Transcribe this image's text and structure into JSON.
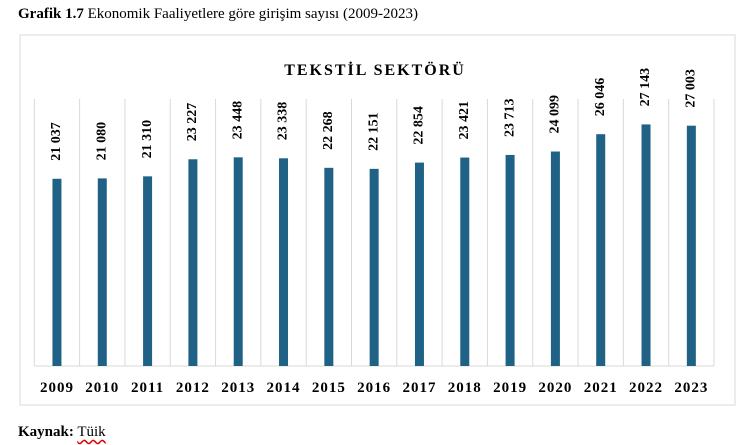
{
  "caption": {
    "label": "Grafik 1.7",
    "text": "Ekonomik Faaliyetlere göre girişim sayısı (2009-2023)"
  },
  "chart_data": {
    "type": "bar",
    "title": "TEKSTİL SEKTÖRÜ",
    "categories": [
      "2009",
      "2010",
      "2011",
      "2012",
      "2013",
      "2014",
      "2015",
      "2016",
      "2017",
      "2018",
      "2019",
      "2020",
      "2021",
      "2022",
      "2023"
    ],
    "values": [
      21037,
      21080,
      21310,
      23227,
      23448,
      23338,
      22268,
      22151,
      22854,
      23421,
      23713,
      24099,
      26046,
      27143,
      27003
    ],
    "value_labels": [
      "21 037",
      "21 080",
      "21 310",
      "23 227",
      "23 448",
      "23 338",
      "22 268",
      "22 151",
      "22 854",
      "23 421",
      "23 713",
      "24 099",
      "26 046",
      "27 143",
      "27 003"
    ],
    "color": "#1f6286",
    "ylim": [
      0,
      30000
    ]
  },
  "source": {
    "label": "Kaynak:",
    "text": "Tüik"
  }
}
